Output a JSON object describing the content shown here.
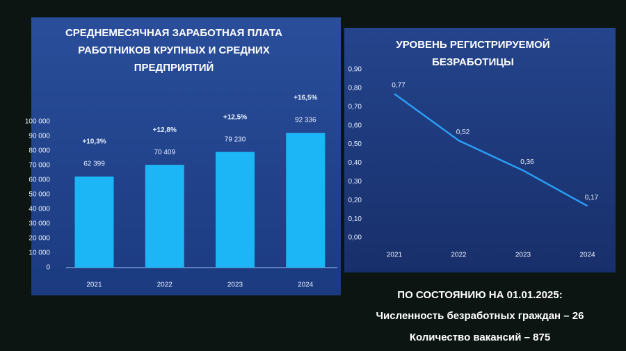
{
  "chart_data": [
    {
      "type": "bar",
      "title": [
        "СРЕДНЕМЕСЯЧНАЯ ЗАРАБОТНАЯ ПЛАТА",
        "РАБОТНИКОВ КРУПНЫХ И СРЕДНИХ",
        "ПРЕДПРИЯТИЙ"
      ],
      "categories": [
        "2021",
        "2022",
        "2023",
        "2024"
      ],
      "values": [
        62399,
        70409,
        79230,
        92336
      ],
      "value_labels": [
        "62 399",
        "70 409",
        "79 230",
        "92 336"
      ],
      "annotations": [
        "+10,3%",
        "+12,8%",
        "+12,5%",
        "+16,5%"
      ],
      "color": "#1cb6f6",
      "ylim": [
        0,
        100000
      ],
      "yticks": [
        0,
        {
          "value": 10000,
          "label": "10 000"
        },
        {
          "value": 20000,
          "label": "20 000"
        },
        {
          "value": 30000,
          "label": "30 000"
        },
        {
          "value": 40000,
          "label": "40 000"
        },
        {
          "value": 50000,
          "label": "50 000"
        },
        {
          "value": 60000,
          "label": "60 000"
        },
        {
          "value": 70000,
          "label": "70 000"
        },
        {
          "value": 80000,
          "label": "80 000"
        },
        {
          "value": 90000,
          "label": "90 000"
        },
        {
          "value": 100000,
          "label": "100 000"
        }
      ],
      "grid": false
    },
    {
      "type": "line",
      "title": [
        "УРОВЕНЬ РЕГИСТРИРУЕМОЙ",
        "БЕЗРАБОТИЦЫ"
      ],
      "categories": [
        "2021",
        "2022",
        "2023",
        "2024"
      ],
      "values": [
        0.77,
        0.52,
        0.36,
        0.17
      ],
      "value_labels": [
        "0,77",
        "0,52",
        "0,36",
        "0,17"
      ],
      "color": "#2a9df4",
      "ylim": [
        0,
        0.9
      ],
      "yticks": [
        {
          "value": 0,
          "label": "0,00"
        },
        {
          "value": 0.1,
          "label": "0,10"
        },
        {
          "value": 0.2,
          "label": "0,20"
        },
        {
          "value": 0.3,
          "label": "0,30"
        },
        {
          "value": 0.4,
          "label": "0,40"
        },
        {
          "value": 0.5,
          "label": "0,50"
        },
        {
          "value": 0.6,
          "label": "0,60"
        },
        {
          "value": 0.7,
          "label": "0,70"
        },
        {
          "value": 0.8,
          "label": "0,80"
        },
        {
          "value": 0.9,
          "label": "0,90"
        }
      ],
      "grid": false
    }
  ],
  "footer": {
    "heading": "ПО СОСТОЯНИЮ НА 01.01.2025:",
    "lines": [
      "Численность безработных граждан – 26",
      "Количество вакансий – 875"
    ]
  }
}
